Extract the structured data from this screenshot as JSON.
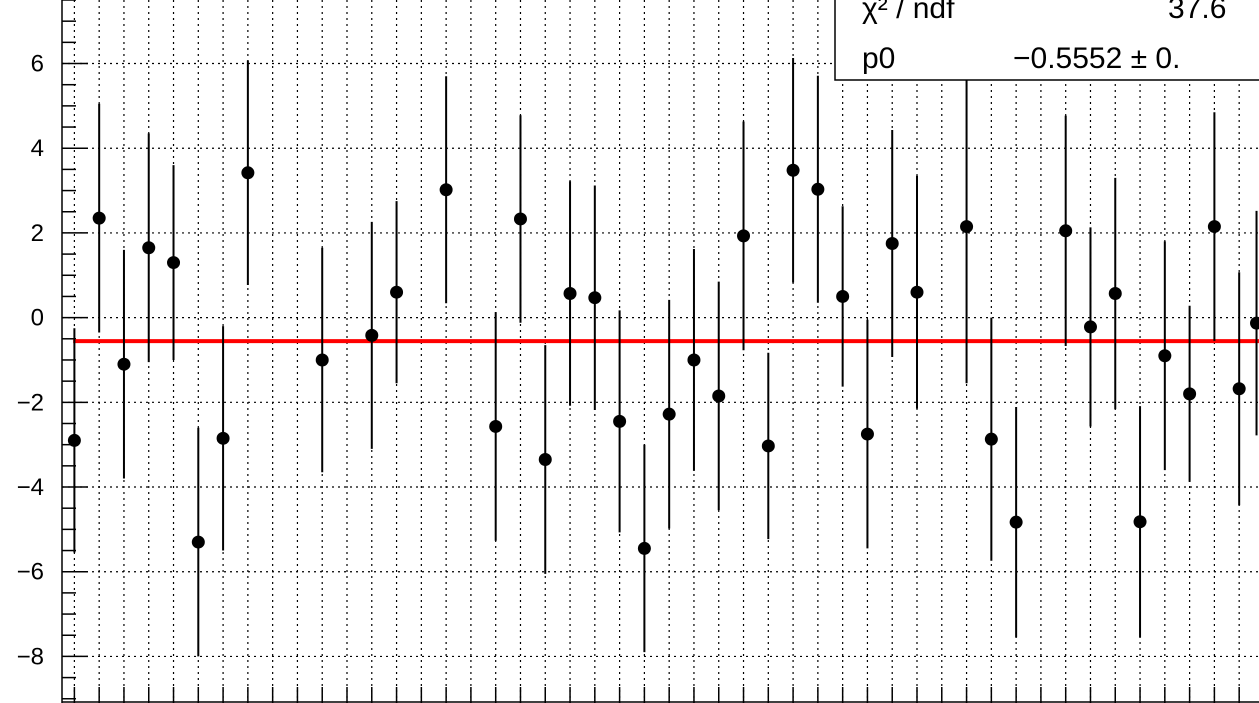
{
  "chart_data": {
    "type": "scatter",
    "x": [
      1,
      2,
      3,
      4,
      5,
      6,
      7,
      8,
      9,
      10,
      11,
      12,
      13,
      14,
      15,
      16,
      17,
      18,
      19,
      20,
      21,
      22,
      23,
      24,
      25,
      26,
      27,
      28,
      29,
      30,
      31,
      32,
      33,
      34,
      35,
      36,
      37,
      38,
      39,
      40,
      41,
      42,
      43,
      44,
      45,
      46,
      47,
      48
    ],
    "series": [
      {
        "values": [
          -2.9,
          2.35,
          -1.1,
          1.65,
          1.3,
          -5.3,
          -2.85,
          3.42,
          null,
          null,
          -1.0,
          null,
          -0.42,
          0.6,
          null,
          3.02,
          null,
          -2.57,
          2.33,
          -3.35,
          0.57,
          0.47,
          -2.45,
          -5.45,
          -2.28,
          -1.0,
          -1.85,
          1.93,
          -3.03,
          3.48,
          3.03,
          0.5,
          -2.75,
          1.75,
          0.6,
          null,
          2.15,
          -2.87,
          -4.83,
          null,
          2.05,
          -0.22,
          0.57,
          -4.82,
          -0.9,
          -1.8,
          2.15,
          -1.68
        ],
        "errors": [
          2.65,
          2.7,
          2.7,
          2.7,
          2.3,
          2.7,
          2.65,
          2.65,
          null,
          null,
          2.65,
          null,
          2.68,
          2.15,
          null,
          2.68,
          null,
          2.7,
          2.45,
          2.7,
          2.65,
          2.65,
          2.62,
          2.45,
          2.7,
          2.62,
          2.7,
          2.7,
          2.2,
          2.65,
          2.68,
          2.13,
          2.7,
          2.68,
          2.75,
          null,
          3.7,
          2.87,
          2.72,
          null,
          2.72,
          2.35,
          2.73,
          2.73,
          2.7,
          2.08,
          2.7,
          2.75
        ],
        "color": "#000000"
      }
    ],
    "extra_point": {
      "x": 48.7,
      "value": -0.13,
      "error": 2.65
    },
    "fit": {
      "label": "p0",
      "value": -0.5552,
      "color": "#ff0000"
    },
    "xlim": [
      0.5,
      48.8
    ],
    "ylim": [
      -9.1,
      7.5
    ],
    "yticks": [
      -8,
      -6,
      -4,
      -2,
      0,
      2,
      4,
      6
    ],
    "ytick_labels": [
      "−8",
      "−6",
      "−4",
      "−2",
      "0",
      "2",
      "4",
      "6"
    ],
    "grid": true,
    "stats_box": {
      "rows": [
        {
          "label": "χ² / ndf",
          "value": "37.6"
        },
        {
          "label": "p0",
          "value": "−0.5552 ± 0."
        }
      ]
    }
  }
}
